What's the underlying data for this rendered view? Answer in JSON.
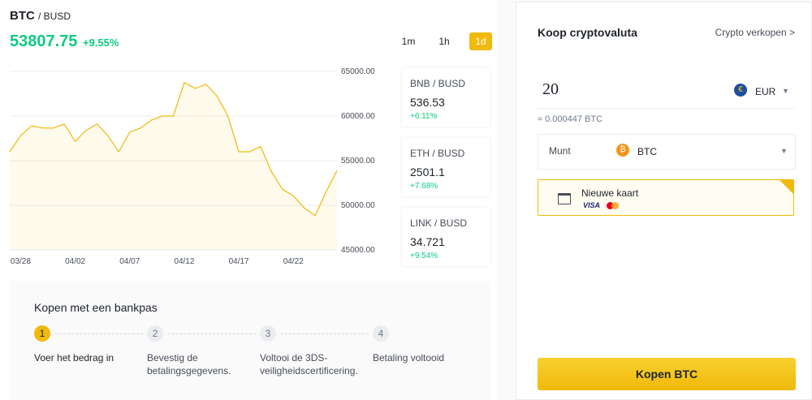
{
  "header": {
    "symbol": "BTC",
    "pair": "/ BUSD",
    "price": "53807.75",
    "change": "+9.55%"
  },
  "timeframes": [
    "1m",
    "1h",
    "1d"
  ],
  "chart_data": {
    "type": "line",
    "color": "#f0b90b",
    "grid": true,
    "categories": [
      null,
      "03/28",
      null,
      null,
      null,
      null,
      "04/02",
      null,
      null,
      null,
      null,
      "04/07",
      null,
      null,
      null,
      null,
      "04/12",
      null,
      null,
      null,
      null,
      "04/17",
      null,
      null,
      null,
      null,
      "04/22",
      null,
      null,
      null,
      null
    ],
    "values": [
      56000,
      57800,
      58900,
      58650,
      58650,
      59100,
      57150,
      58400,
      59100,
      57800,
      56000,
      58200,
      58650,
      59550,
      60000,
      60000,
      63750,
      63100,
      63550,
      62250,
      60000,
      56000,
      56000,
      56600,
      53750,
      51800,
      51050,
      49700,
      48850,
      51500,
      53900
    ],
    "ylim": [
      45000,
      65000
    ],
    "yticks": [
      {
        "value": 45000,
        "label": "45000.00"
      },
      {
        "value": 50000,
        "label": "50000.00"
      },
      {
        "value": 55000,
        "label": "55000.00"
      },
      {
        "value": 60000,
        "label": "60000.00"
      },
      {
        "value": 65000,
        "label": "65000.00"
      }
    ]
  },
  "tickers": [
    {
      "pair": "BNB / BUSD",
      "price": "536.53",
      "change": "+6.11%"
    },
    {
      "pair": "ETH / BUSD",
      "price": "2501.1",
      "change": "+7.68%"
    },
    {
      "pair": "LINK / BUSD",
      "price": "34.721",
      "change": "+9.54%"
    }
  ],
  "steps": {
    "title": "Kopen met een bankpas",
    "items": [
      {
        "number": "1",
        "label": "Voer het bedrag in"
      },
      {
        "number": "2",
        "label": "Bevestig de betalingsgegevens."
      },
      {
        "number": "3",
        "label": "Voltooi de 3DS-veiligheidscertificering."
      },
      {
        "number": "4",
        "label": "Betaling voltooid"
      }
    ]
  },
  "buy": {
    "title": "Koop cryptovaluta",
    "sell_link": "Crypto verkopen >",
    "amount": "20",
    "currency_icon": "€",
    "currency": "EUR",
    "estimate": "≈ 0.000447 BTC",
    "coin_label": "Munt",
    "coin_icon": "₿",
    "coin": "BTC",
    "card": "Nieuwe kaart",
    "card_brand": "VISA",
    "button": "Kopen BTC"
  }
}
